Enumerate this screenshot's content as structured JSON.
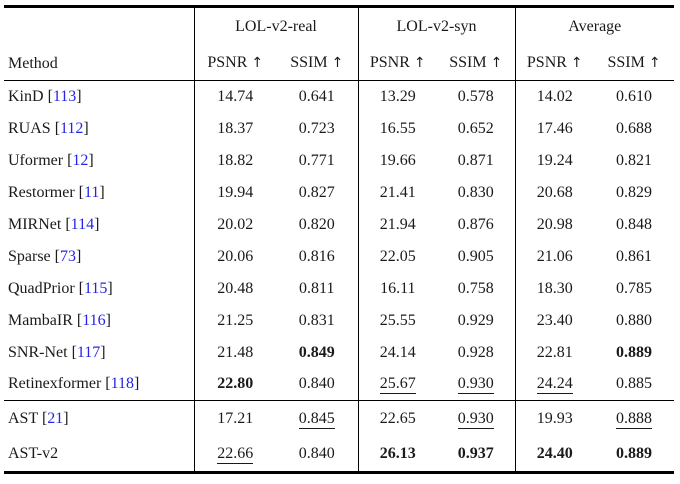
{
  "colors": {
    "text": "#1a1a1a",
    "citation_blue": "#2525e6",
    "rule_black": "#000000",
    "background": "#ffffff"
  },
  "header": {
    "method": "Method",
    "groups": [
      "LOL-v2-real",
      "LOL-v2-syn",
      "Average"
    ],
    "metrics": [
      "PSNR",
      "SSIM"
    ],
    "arrow": "↑"
  },
  "citation_brackets": [
    "[",
    "]"
  ],
  "rows": [
    {
      "method": "KinD",
      "cite": "113",
      "values": [
        "14.74",
        "0.641",
        "13.29",
        "0.578",
        "14.02",
        "0.610"
      ],
      "styles": [
        "",
        "",
        "",
        "",
        "",
        ""
      ]
    },
    {
      "method": "RUAS",
      "cite": "112",
      "values": [
        "18.37",
        "0.723",
        "16.55",
        "0.652",
        "17.46",
        "0.688"
      ],
      "styles": [
        "",
        "",
        "",
        "",
        "",
        ""
      ]
    },
    {
      "method": "Uformer",
      "cite": "12",
      "values": [
        "18.82",
        "0.771",
        "19.66",
        "0.871",
        "19.24",
        "0.821"
      ],
      "styles": [
        "",
        "",
        "",
        "",
        "",
        ""
      ]
    },
    {
      "method": "Restormer",
      "cite": "11",
      "values": [
        "19.94",
        "0.827",
        "21.41",
        "0.830",
        "20.68",
        "0.829"
      ],
      "styles": [
        "",
        "",
        "",
        "",
        "",
        ""
      ]
    },
    {
      "method": "MIRNet",
      "cite": "114",
      "values": [
        "20.02",
        "0.820",
        "21.94",
        "0.876",
        "20.98",
        "0.848"
      ],
      "styles": [
        "",
        "",
        "",
        "",
        "",
        ""
      ]
    },
    {
      "method": "Sparse",
      "cite": "73",
      "values": [
        "20.06",
        "0.816",
        "22.05",
        "0.905",
        "21.06",
        "0.861"
      ],
      "styles": [
        "",
        "",
        "",
        "",
        "",
        ""
      ]
    },
    {
      "method": "QuadPrior",
      "cite": "115",
      "values": [
        "20.48",
        "0.811",
        "16.11",
        "0.758",
        "18.30",
        "0.785"
      ],
      "styles": [
        "",
        "",
        "",
        "",
        "",
        ""
      ]
    },
    {
      "method": "MambaIR",
      "cite": "116",
      "values": [
        "21.25",
        "0.831",
        "25.55",
        "0.929",
        "23.40",
        "0.880"
      ],
      "styles": [
        "",
        "",
        "",
        "",
        "",
        ""
      ]
    },
    {
      "method": "SNR-Net",
      "cite": "117",
      "values": [
        "21.48",
        "0.849",
        "24.14",
        "0.928",
        "22.81",
        "0.889"
      ],
      "styles": [
        "",
        "b",
        "",
        "",
        "",
        "b"
      ]
    },
    {
      "method": "Retinexformer",
      "cite": "118",
      "values": [
        "22.80",
        "0.840",
        "25.67",
        "0.930",
        "24.24",
        "0.885"
      ],
      "styles": [
        "b",
        "",
        "u",
        "u",
        "u",
        ""
      ]
    },
    {
      "method": "AST",
      "cite": "21",
      "values": [
        "17.21",
        "0.845",
        "22.65",
        "0.930",
        "19.93",
        "0.888"
      ],
      "styles": [
        "",
        "u",
        "",
        "u",
        "",
        "u"
      ],
      "rule_above": true,
      "ours": true
    },
    {
      "method": "AST-v2",
      "cite": null,
      "values": [
        "22.66",
        "0.840",
        "26.13",
        "0.937",
        "24.40",
        "0.889"
      ],
      "styles": [
        "u",
        "",
        "b",
        "b",
        "b",
        "b"
      ],
      "ours": true
    }
  ]
}
